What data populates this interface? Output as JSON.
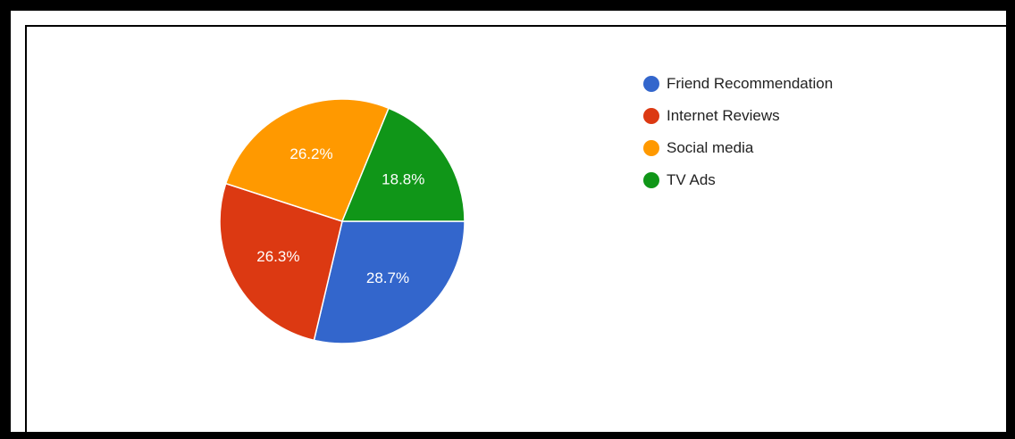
{
  "chart_data": {
    "type": "pie",
    "slices": [
      {
        "label": "Friend Recommendation",
        "value": 28.7,
        "display": "28.7%",
        "color": "#3366cc"
      },
      {
        "label": "Internet Reviews",
        "value": 26.3,
        "display": "26.3%",
        "color": "#dc3912"
      },
      {
        "label": "Social media",
        "value": 26.2,
        "display": "26.2%",
        "color": "#ff9900"
      },
      {
        "label": "TV Ads",
        "value": 18.8,
        "display": "18.8%",
        "color": "#109618"
      }
    ],
    "legend_position": "right"
  }
}
